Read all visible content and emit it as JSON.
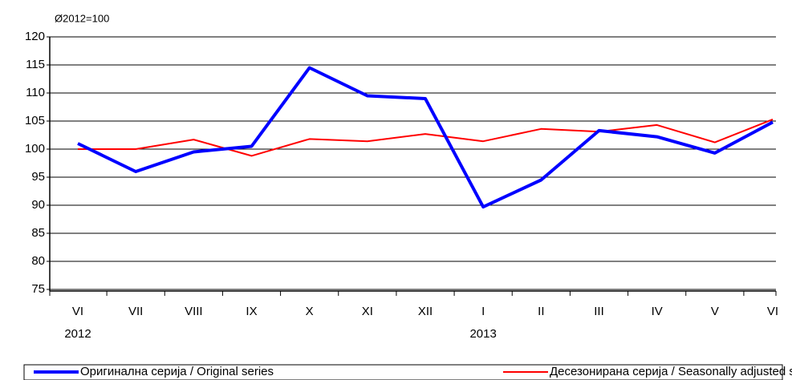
{
  "chart_data": {
    "type": "line",
    "unit_label": "Ø2012=100",
    "categories": [
      "VI",
      "VII",
      "VIII",
      "IX",
      "X",
      "XI",
      "XII",
      "I",
      "II",
      "III",
      "IV",
      "V",
      "VI"
    ],
    "x_groups": [
      {
        "label": "2012",
        "start": 0
      },
      {
        "label": "2013",
        "start": 7
      }
    ],
    "series": [
      {
        "name": "Оригинална серија / Original series",
        "color": "#0000ff",
        "values": [
          101,
          96,
          99.5,
          100.5,
          114.5,
          109.5,
          109,
          89.7,
          94.5,
          103.3,
          102.2,
          99.3,
          104.8
        ]
      },
      {
        "name": "Десезонирана серија / Seasonally adjusted series",
        "color": "#ff0000",
        "values": [
          100,
          100,
          101.7,
          98.8,
          101.8,
          101.4,
          102.7,
          101.4,
          103.6,
          103.1,
          104.3,
          101.2,
          105.3
        ]
      }
    ],
    "ylim": [
      75,
      120
    ],
    "yticks": [
      75,
      80,
      85,
      90,
      95,
      100,
      105,
      110,
      115,
      120
    ],
    "grid": true,
    "legend": "bottom"
  }
}
